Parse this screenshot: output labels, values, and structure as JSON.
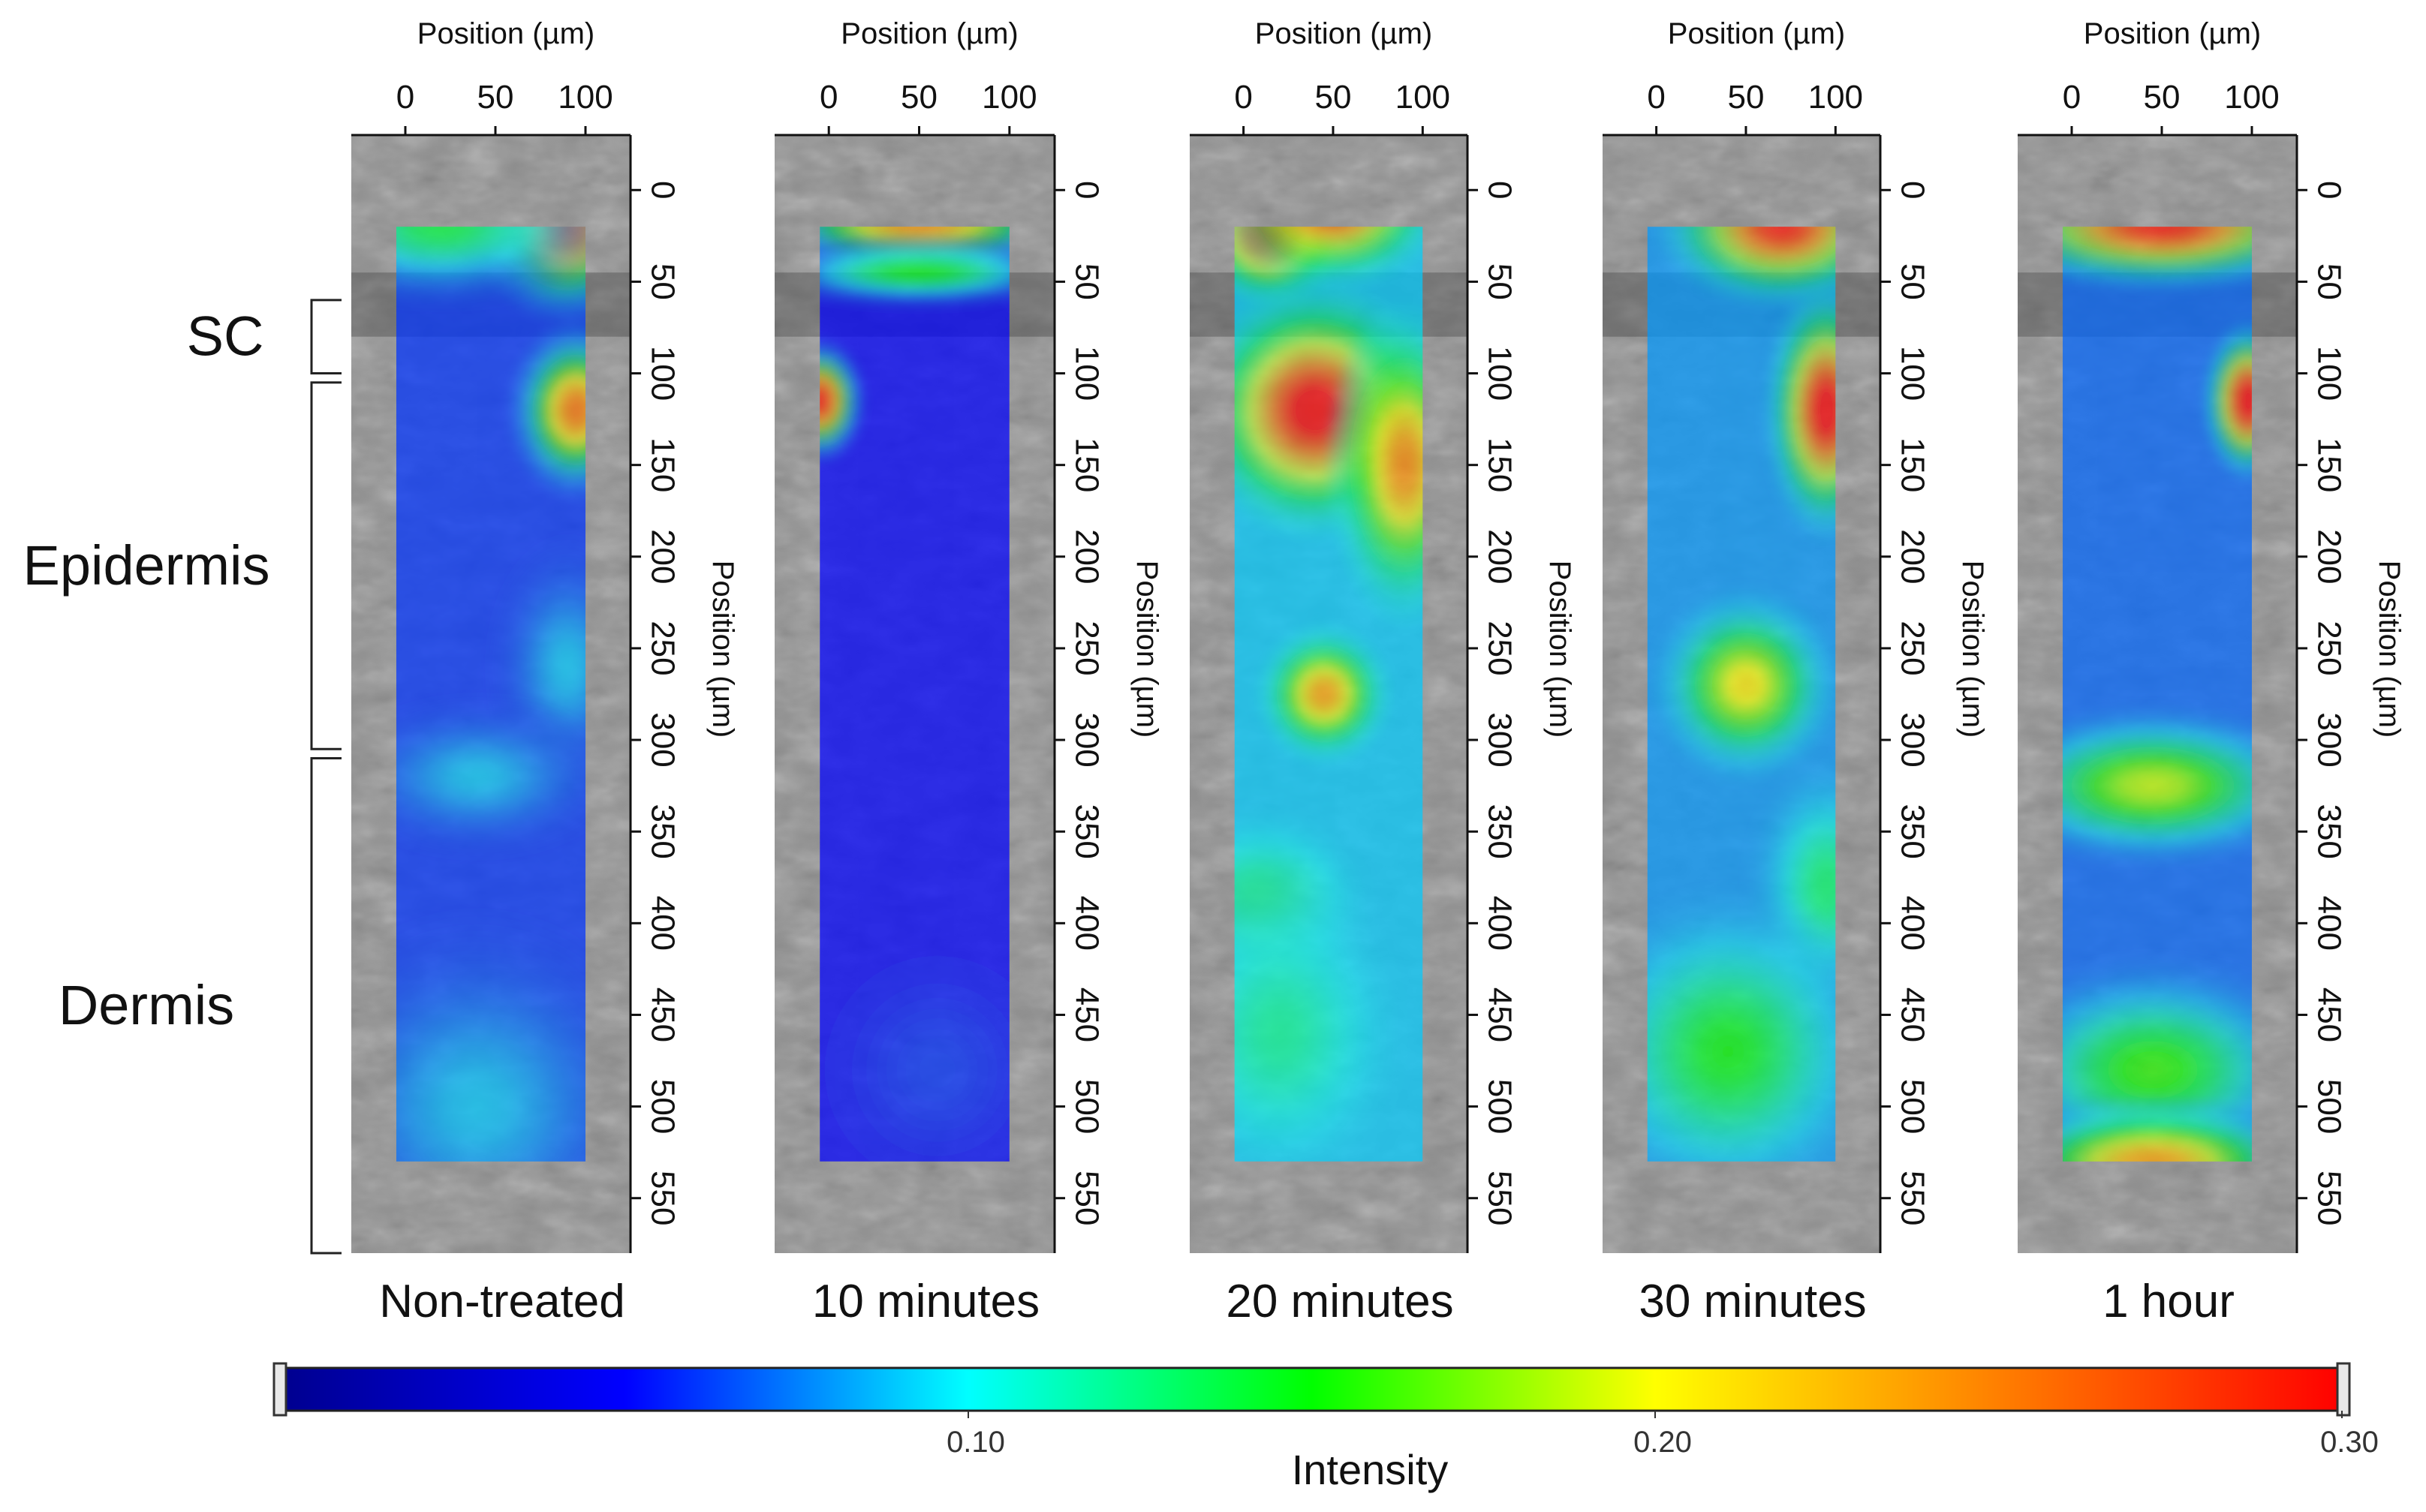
{
  "chart_data": {
    "type": "heatmap",
    "x_axis_label": "Position (µm)",
    "y_axis_label": "Position (µm)",
    "x_ticks": [
      "0",
      "50",
      "100"
    ],
    "y_ticks": [
      "0",
      "50",
      "100",
      "150",
      "200",
      "250",
      "300",
      "350",
      "400",
      "450",
      "500",
      "550"
    ],
    "xlim": [
      -30,
      125
    ],
    "ylim": [
      -30,
      580
    ],
    "map_x_range": [
      -5,
      100
    ],
    "map_y_range": [
      20,
      530
    ],
    "panels": [
      {
        "caption": "Non-treated",
        "base_level": 0.06,
        "hotspots": [
          {
            "x": 90,
            "y": 20,
            "value": 0.27,
            "sx": 30,
            "sy": 30
          },
          {
            "x": 20,
            "y": 20,
            "value": 0.14,
            "sx": 55,
            "sy": 25
          },
          {
            "x": 95,
            "y": 120,
            "value": 0.26,
            "sx": 22,
            "sy": 28
          },
          {
            "x": 90,
            "y": 260,
            "value": 0.09,
            "sx": 25,
            "sy": 40
          },
          {
            "x": 40,
            "y": 320,
            "value": 0.09,
            "sx": 45,
            "sy": 25
          },
          {
            "x": 40,
            "y": 500,
            "value": 0.09,
            "sx": 60,
            "sy": 60
          }
        ]
      },
      {
        "caption": "10 minutes",
        "base_level": 0.05,
        "hotspots": [
          {
            "x": 50,
            "y": 15,
            "value": 0.25,
            "sx": 55,
            "sy": 25
          },
          {
            "x": 50,
            "y": 45,
            "value": 0.15,
            "sx": 55,
            "sy": 12
          },
          {
            "x": -5,
            "y": 115,
            "value": 0.3,
            "sx": 15,
            "sy": 20
          },
          {
            "x": 60,
            "y": 480,
            "value": 0.06,
            "sx": 50,
            "sy": 50
          }
        ]
      },
      {
        "caption": "20 minutes",
        "base_level": 0.09,
        "hotspots": [
          {
            "x": 15,
            "y": 20,
            "value": 0.33,
            "sx": 25,
            "sy": 25
          },
          {
            "x": 50,
            "y": 10,
            "value": 0.28,
            "sx": 35,
            "sy": 25
          },
          {
            "x": 40,
            "y": 120,
            "value": 0.32,
            "sx": 40,
            "sy": 40
          },
          {
            "x": 90,
            "y": 150,
            "value": 0.25,
            "sx": 25,
            "sy": 50
          },
          {
            "x": 45,
            "y": 275,
            "value": 0.24,
            "sx": 22,
            "sy": 22
          },
          {
            "x": 10,
            "y": 390,
            "value": 0.13,
            "sx": 35,
            "sy": 30
          },
          {
            "x": 20,
            "y": 460,
            "value": 0.12,
            "sx": 40,
            "sy": 50
          }
        ]
      },
      {
        "caption": "30 minutes",
        "base_level": 0.08,
        "hotspots": [
          {
            "x": 70,
            "y": 20,
            "value": 0.3,
            "sx": 40,
            "sy": 25
          },
          {
            "x": 95,
            "y": 120,
            "value": 0.32,
            "sx": 20,
            "sy": 40
          },
          {
            "x": 50,
            "y": 270,
            "value": 0.21,
            "sx": 30,
            "sy": 30
          },
          {
            "x": 95,
            "y": 380,
            "value": 0.13,
            "sx": 25,
            "sy": 40
          },
          {
            "x": 40,
            "y": 470,
            "value": 0.15,
            "sx": 50,
            "sy": 50
          }
        ]
      },
      {
        "caption": "1 hour",
        "base_level": 0.07,
        "hotspots": [
          {
            "x": 50,
            "y": 20,
            "value": 0.3,
            "sx": 60,
            "sy": 20
          },
          {
            "x": 98,
            "y": 115,
            "value": 0.33,
            "sx": 15,
            "sy": 25
          },
          {
            "x": 45,
            "y": 325,
            "value": 0.19,
            "sx": 55,
            "sy": 25
          },
          {
            "x": 45,
            "y": 480,
            "value": 0.16,
            "sx": 55,
            "sy": 35
          },
          {
            "x": 45,
            "y": 530,
            "value": 0.24,
            "sx": 55,
            "sy": 20
          }
        ]
      }
    ],
    "regions": [
      {
        "label": "SC",
        "y_range": [
          60,
          100
        ]
      },
      {
        "label": "Epidermis",
        "y_range": [
          105,
          305
        ]
      },
      {
        "label": "Dermis",
        "y_range": [
          310,
          580
        ]
      }
    ],
    "colorbar": {
      "title": "Intensity",
      "range": [
        0.0,
        0.3
      ],
      "ticks": [
        "0.10",
        "0.20",
        "0.30"
      ],
      "tick_values": [
        0.1,
        0.2,
        0.3
      ],
      "colormap": [
        "#00008f",
        "#0000ff",
        "#00ffff",
        "#00ff00",
        "#ffff00",
        "#ff7f00",
        "#ff0000"
      ]
    }
  },
  "colors": {
    "tissue_background": "#8f8f8f",
    "axis": "#111111"
  }
}
